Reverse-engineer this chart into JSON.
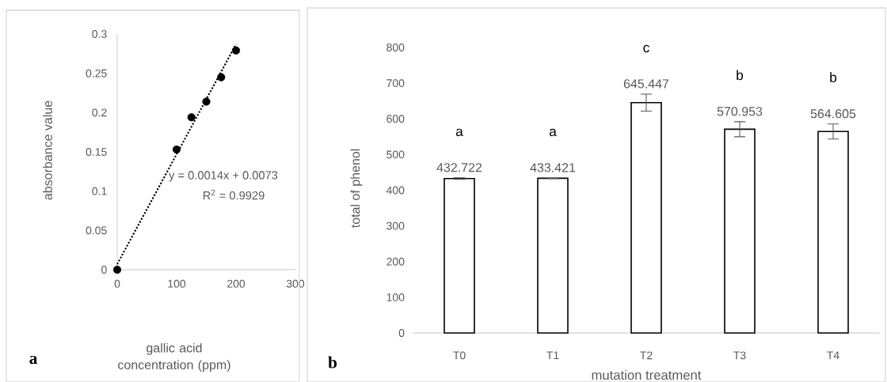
{
  "chart_data": [
    {
      "type": "scatter",
      "xlabel": "gallic acid concentration (ppm)",
      "ylabel": "absorbance value",
      "xlim": [
        0,
        300
      ],
      "xticks": [
        0,
        100,
        200,
        300
      ],
      "ylim": [
        0,
        0.3
      ],
      "yticks": [
        0,
        0.05,
        0.1,
        0.15,
        0.2,
        0.25,
        0.3
      ],
      "series": [
        {
          "type": "scatter",
          "color": "#000000",
          "marker": "circle",
          "x": [
            0,
            100,
            125,
            150,
            175,
            200
          ],
          "values": [
            0,
            0.153,
            0.194,
            0.214,
            0.245,
            0.279
          ]
        },
        {
          "type": "line",
          "color": "#000000",
          "line_style": "dotted",
          "x": [
            0,
            200
          ],
          "values": [
            0.007,
            0.287
          ]
        }
      ],
      "annotations": [
        "y = 0.0014x + 0.0073",
        "R$^{2}$ = 0.9929",
        "a"
      ]
    },
    {
      "type": "bar",
      "xlabel": "mutation treatment",
      "ylabel": "total of phenol",
      "color": "#ffffff",
      "categories": [
        "T0",
        "T1",
        "T2",
        "T3",
        "T4"
      ],
      "values": [
        432.722,
        433.421,
        645.447,
        570.953,
        564.605
      ],
      "errors": [
        2,
        1,
        24,
        21,
        21
      ],
      "data_labels": true,
      "ylim": [
        0,
        800
      ],
      "yticks": [
        0,
        100,
        200,
        300,
        400,
        500,
        600,
        700,
        800
      ],
      "annotations": [
        "a",
        "a",
        "c",
        "b",
        "b",
        "b"
      ]
    }
  ]
}
